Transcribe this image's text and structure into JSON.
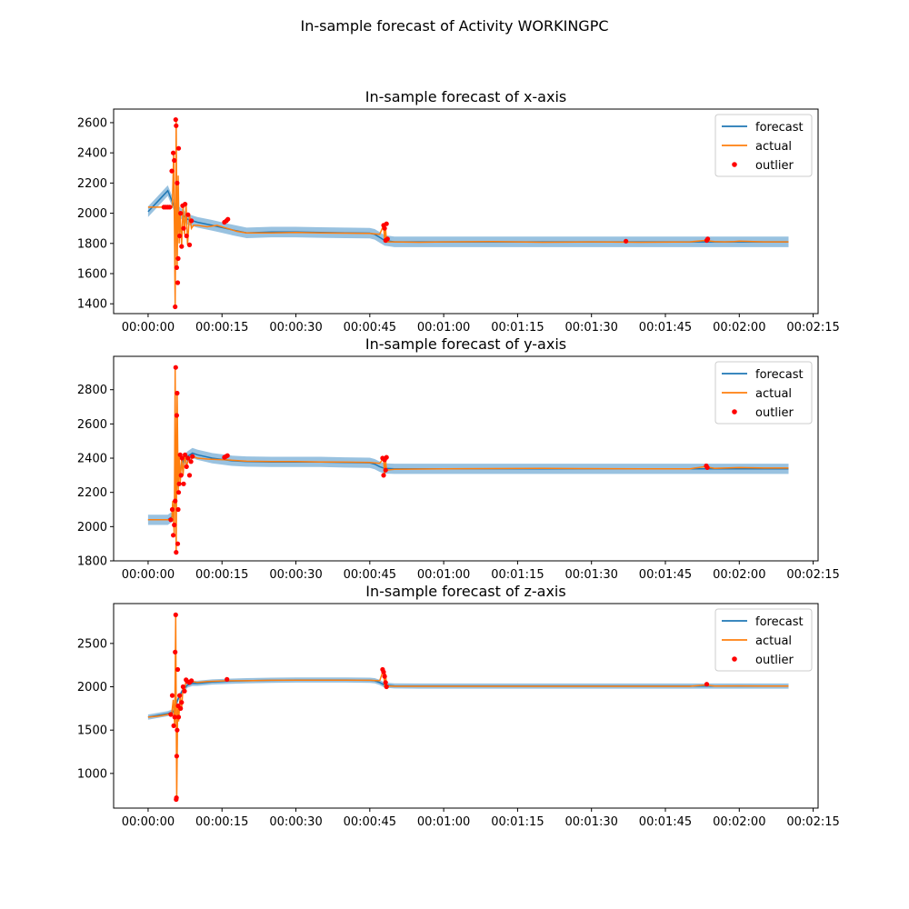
{
  "figure": {
    "suptitle": "In-sample forecast of Activity WORKINGPC"
  },
  "colors": {
    "forecast": "#1f77b4",
    "band": "#7fb3d8",
    "actual": "#ff7f0e",
    "outlier": "#ff0000"
  },
  "legend": {
    "forecast": "forecast",
    "actual": "actual",
    "outlier": "outlier",
    "placement": "top-right"
  },
  "x_tick_labels": [
    "00:00:00",
    "00:00:15",
    "00:00:30",
    "00:00:45",
    "00:01:00",
    "00:01:15",
    "00:01:30",
    "00:01:45",
    "00:02:00",
    "00:02:15"
  ],
  "chart_data": [
    {
      "type": "line",
      "title": "In-sample forecast of x-axis",
      "x_unit": "seconds",
      "xlim": [
        -7,
        136
      ],
      "ylim": [
        1335,
        2690
      ],
      "y_ticks": [
        1400,
        1600,
        1800,
        2000,
        2200,
        2400,
        2600
      ],
      "band_halfwidth": 35,
      "forecast": {
        "x": [
          0,
          2,
          4,
          5.5,
          7,
          8,
          10,
          13,
          17,
          20,
          25,
          30,
          35,
          40,
          45,
          46,
          47,
          48,
          50,
          55,
          60,
          70,
          80,
          90,
          100,
          110,
          120,
          125,
          130
        ],
        "y": [
          2010,
          2080,
          2150,
          2030,
          1990,
          1960,
          1940,
          1920,
          1890,
          1870,
          1875,
          1875,
          1872,
          1870,
          1868,
          1860,
          1840,
          1820,
          1810,
          1810,
          1810,
          1810,
          1810,
          1810,
          1810,
          1810,
          1810,
          1810,
          1810
        ]
      },
      "actual": {
        "x": [
          0,
          2,
          3,
          4.9,
          5.2,
          5.5,
          5.7,
          5.9,
          6.1,
          6.3,
          6.5,
          6.8,
          7.1,
          7.4,
          7.7,
          8,
          8.4,
          8.8,
          9.2,
          10,
          12,
          14,
          16,
          18,
          20,
          25,
          30,
          35,
          40,
          45,
          47,
          47.8,
          48,
          48.2,
          48.4,
          50,
          55,
          60,
          70,
          80,
          90,
          100,
          110,
          113,
          115,
          117,
          119,
          120,
          125,
          130
        ],
        "y": [
          2040,
          2040,
          2040,
          2040,
          2400,
          1380,
          2620,
          1640,
          2250,
          1800,
          2000,
          1780,
          2050,
          1860,
          2060,
          1790,
          1990,
          1900,
          1920,
          1920,
          1910,
          1920,
          1900,
          1880,
          1870,
          1870,
          1872,
          1870,
          1868,
          1866,
          1860,
          1920,
          1820,
          1900,
          1810,
          1810,
          1808,
          1810,
          1812,
          1808,
          1810,
          1808,
          1810,
          1820,
          1812,
          1810,
          1812,
          1815,
          1810,
          1810
        ]
      },
      "outliers": {
        "x": [
          3.2,
          3.6,
          4,
          4.4,
          4.8,
          5.1,
          5.3,
          5.5,
          5.6,
          5.7,
          5.8,
          5.9,
          6,
          6.1,
          6.2,
          6.4,
          6.6,
          6.8,
          7,
          7.2,
          7.5,
          7.8,
          8.1,
          8.4,
          8.8,
          15.5,
          15.9,
          16.2,
          47.8,
          48,
          48.2,
          48.4,
          48.6,
          97,
          113.4,
          113.6
        ],
        "y": [
          2040,
          2040,
          2040,
          2040,
          2280,
          2400,
          2350,
          1380,
          2620,
          2580,
          1640,
          2200,
          1540,
          1700,
          2430,
          1850,
          2000,
          1780,
          2050,
          1900,
          2060,
          1850,
          1990,
          1790,
          1950,
          1940,
          1950,
          1960,
          1920,
          1900,
          1820,
          1930,
          1830,
          1815,
          1820,
          1830
        ]
      }
    },
    {
      "type": "line",
      "title": "In-sample forecast of y-axis",
      "x_unit": "seconds",
      "xlim": [
        -7,
        136
      ],
      "ylim": [
        1800,
        2995
      ],
      "y_ticks": [
        1800,
        2000,
        2200,
        2400,
        2600,
        2800
      ],
      "band_halfwidth": 30,
      "forecast": {
        "x": [
          0,
          2,
          4,
          5,
          5.5,
          6,
          7,
          8,
          9,
          10,
          13,
          17,
          20,
          25,
          30,
          35,
          40,
          45,
          46,
          47,
          48,
          50,
          55,
          60,
          80,
          100,
          120,
          130
        ],
        "y": [
          2040,
          2040,
          2040,
          2060,
          2150,
          2280,
          2380,
          2410,
          2430,
          2420,
          2400,
          2385,
          2380,
          2378,
          2378,
          2378,
          2375,
          2373,
          2365,
          2350,
          2340,
          2338,
          2338,
          2338,
          2338,
          2338,
          2338,
          2338
        ]
      },
      "actual": {
        "x": [
          0,
          2,
          4,
          4.8,
          5,
          5.3,
          5.5,
          5.7,
          5.9,
          6.1,
          6.3,
          6.5,
          6.8,
          7.1,
          7.4,
          7.8,
          8.2,
          8.6,
          9,
          10,
          12,
          14,
          16,
          20,
          25,
          30,
          35,
          40,
          45,
          47,
          47.8,
          48,
          48.2,
          48.4,
          50,
          60,
          80,
          100,
          110,
          113,
          115,
          120,
          125,
          130
        ],
        "y": [
          2040,
          2040,
          2040,
          2040,
          2150,
          1950,
          2930,
          1850,
          2780,
          2200,
          2420,
          2250,
          2400,
          2300,
          2420,
          2350,
          2400,
          2380,
          2410,
          2400,
          2395,
          2392,
          2390,
          2382,
          2380,
          2380,
          2378,
          2377,
          2375,
          2370,
          2400,
          2300,
          2390,
          2330,
          2335,
          2338,
          2340,
          2338,
          2338,
          2350,
          2340,
          2345,
          2342,
          2342
        ]
      },
      "outliers": {
        "x": [
          4.6,
          4.9,
          5.1,
          5.3,
          5.5,
          5.6,
          5.7,
          5.8,
          5.9,
          6,
          6.1,
          6.2,
          6.3,
          6.5,
          6.7,
          6.9,
          7.2,
          7.5,
          7.8,
          8.1,
          8.4,
          8.7,
          9,
          15.5,
          15.8,
          16.1,
          47.6,
          47.8,
          48,
          48.2,
          48.4,
          113.3,
          113.5
        ],
        "y": [
          2040,
          2100,
          1950,
          2010,
          2150,
          2930,
          1850,
          2650,
          2780,
          1900,
          2100,
          2200,
          2250,
          2420,
          2300,
          2400,
          2250,
          2420,
          2350,
          2400,
          2300,
          2380,
          2410,
          2405,
          2410,
          2415,
          2400,
          2300,
          2390,
          2330,
          2405,
          2355,
          2345
        ]
      }
    },
    {
      "type": "line",
      "title": "In-sample forecast of z-axis",
      "x_unit": "seconds",
      "xlim": [
        -7,
        136
      ],
      "ylim": [
        600,
        2960
      ],
      "y_ticks": [
        1000,
        1500,
        2000,
        2500
      ],
      "band_halfwidth": 30,
      "forecast": {
        "x": [
          0,
          2,
          4,
          5,
          5.5,
          6,
          7,
          8,
          9,
          10,
          13,
          17,
          20,
          25,
          30,
          35,
          40,
          45,
          46,
          47,
          48,
          50,
          55,
          60,
          80,
          100,
          120,
          130
        ],
        "y": [
          1650,
          1670,
          1690,
          1710,
          1750,
          1850,
          1960,
          2020,
          2040,
          2040,
          2055,
          2065,
          2070,
          2075,
          2078,
          2078,
          2078,
          2075,
          2070,
          2050,
          2020,
          2010,
          2008,
          2008,
          2008,
          2008,
          2008,
          2008
        ]
      },
      "actual": {
        "x": [
          0,
          2,
          4,
          4.8,
          5.1,
          5.4,
          5.6,
          5.8,
          6,
          6.2,
          6.5,
          6.8,
          7.1,
          7.4,
          7.7,
          8,
          8.5,
          9,
          10,
          12,
          16,
          20,
          25,
          30,
          35,
          40,
          45,
          47,
          47.8,
          48,
          48.2,
          48.4,
          50,
          60,
          80,
          100,
          110,
          113,
          115,
          120,
          125,
          130
        ],
        "y": [
          1650,
          1660,
          1680,
          1700,
          1850,
          1550,
          2830,
          700,
          1800,
          1600,
          1900,
          1750,
          2000,
          1950,
          2080,
          2050,
          2040,
          2060,
          2050,
          2060,
          2070,
          2070,
          2075,
          2076,
          2077,
          2077,
          2075,
          2070,
          2200,
          2000,
          2150,
          2010,
          2005,
          2005,
          2005,
          2005,
          2005,
          2020,
          2008,
          2010,
          2008,
          2008
        ]
      },
      "outliers": {
        "x": [
          4.6,
          4.9,
          5.2,
          5.4,
          5.5,
          5.6,
          5.7,
          5.75,
          5.8,
          5.9,
          6,
          6.1,
          6.2,
          6.4,
          6.6,
          6.8,
          7.1,
          7.4,
          7.7,
          8,
          8.4,
          8.8,
          16,
          47.6,
          47.8,
          48,
          48.2,
          48.4,
          113.4
        ],
        "y": [
          1680,
          1900,
          1550,
          1650,
          2400,
          2830,
          700,
          720,
          1200,
          1500,
          2200,
          1780,
          1650,
          1900,
          1750,
          1820,
          2000,
          1950,
          2080,
          2060,
          2050,
          2070,
          2085,
          2200,
          2170,
          2120,
          2050,
          2000,
          2030
        ]
      }
    }
  ]
}
